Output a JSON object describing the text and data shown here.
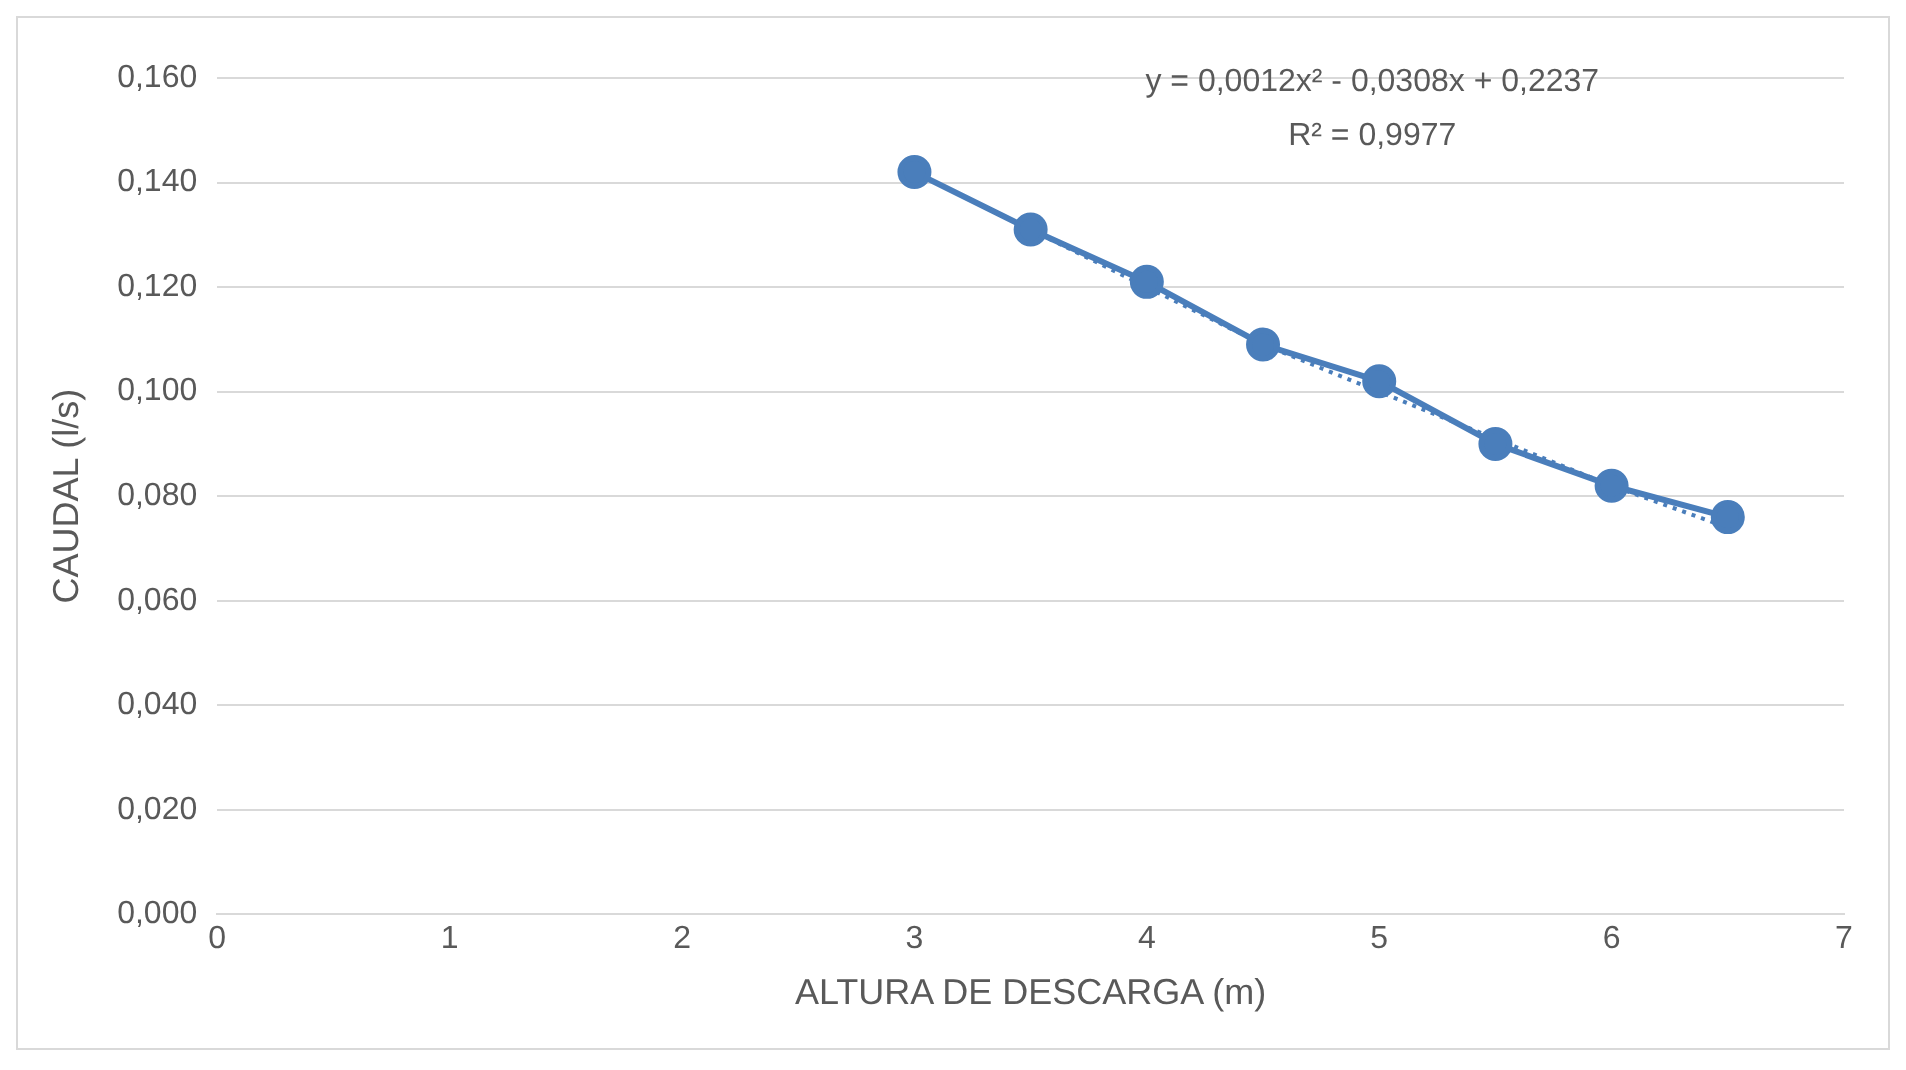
{
  "chart_data": {
    "type": "line",
    "xlabel": "ALTURA DE DESCARGA (m)",
    "ylabel": "CAUDAL (l/s)",
    "x": [
      3,
      3.5,
      4,
      4.5,
      5,
      5.5,
      6,
      6.5
    ],
    "series": [
      {
        "color": "#4a7ebb",
        "marker": "circle",
        "line_style": "solid",
        "values": [
          0.142,
          0.131,
          0.121,
          0.109,
          0.102,
          0.09,
          0.082,
          0.076
        ]
      },
      {
        "color": "#4a7ebb",
        "marker": "none",
        "line_style": "dotted",
        "x": [
          3,
          3.5,
          4,
          4.5,
          5,
          5.5,
          6,
          6.5
        ],
        "values": [
          0.142,
          0.131,
          0.12,
          0.109,
          0.1,
          0.091,
          0.082,
          0.074
        ]
      }
    ],
    "xlim": [
      0,
      7
    ],
    "xticks": [
      0,
      1,
      2,
      3,
      4,
      5,
      6,
      7
    ],
    "ylim": [
      0,
      0.16
    ],
    "yticks": [
      {
        "value": 0,
        "label": "0,000"
      },
      {
        "value": 0.02,
        "label": "0,020"
      },
      {
        "value": 0.04,
        "label": "0,040"
      },
      {
        "value": 0.06,
        "label": "0,060"
      },
      {
        "value": 0.08,
        "label": "0,080"
      },
      {
        "value": 0.1,
        "label": "0,100"
      },
      {
        "value": 0.12,
        "label": "0,120"
      },
      {
        "value": 0.14,
        "label": "0,140"
      },
      {
        "value": 0.16,
        "label": "0,160"
      }
    ],
    "grid": "y",
    "legend": false,
    "annotations": [
      "y = 0,0012x² - 0,0308x + 0,2237",
      "R² = 0,9977"
    ]
  }
}
